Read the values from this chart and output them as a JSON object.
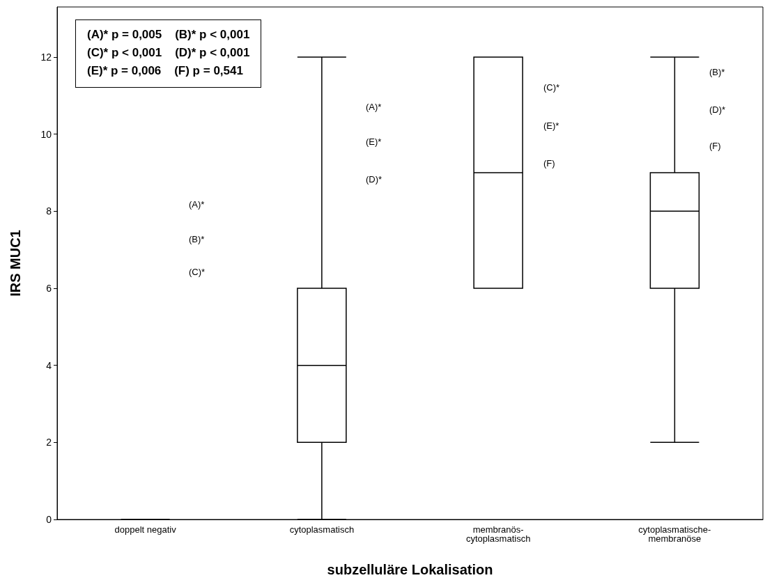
{
  "chart_data": {
    "type": "box",
    "xlabel": "subzelluläre Lokalisation",
    "ylabel": "IRS MUC1",
    "categories": [
      "doppelt negativ",
      "cytoplasmatisch",
      "membranös-cytoplasmatisch",
      "cytoplasmatische-membranöse"
    ],
    "boxes": [
      {
        "low": 0,
        "q1": 0,
        "median": 0,
        "q3": 0,
        "high": 0
      },
      {
        "low": 0,
        "q1": 2,
        "median": 4,
        "q3": 6,
        "high": 12
      },
      {
        "low": 6,
        "q1": 6,
        "median": 9,
        "q3": 12,
        "high": 12
      },
      {
        "low": 2,
        "q1": 6,
        "median": 8,
        "q3": 9,
        "high": 12
      }
    ],
    "ylim": [
      0,
      13.3
    ],
    "yticks": [
      0,
      2,
      4,
      6,
      8,
      10,
      12
    ],
    "grid": false,
    "annotations": [
      "(A)* p = 0,005    (B)* p < 0,001",
      "(C)* p < 0,001    (D)* p < 0,001",
      "(E)* p = 0,006    (F) p = 0,541",
      "(A)*",
      "(B)*",
      "(C)*",
      "(A)*",
      "(E)*",
      "(D)*",
      "(C)*",
      "(E)*",
      "(F)",
      "(B)*",
      "(D)*",
      "(F)"
    ]
  }
}
